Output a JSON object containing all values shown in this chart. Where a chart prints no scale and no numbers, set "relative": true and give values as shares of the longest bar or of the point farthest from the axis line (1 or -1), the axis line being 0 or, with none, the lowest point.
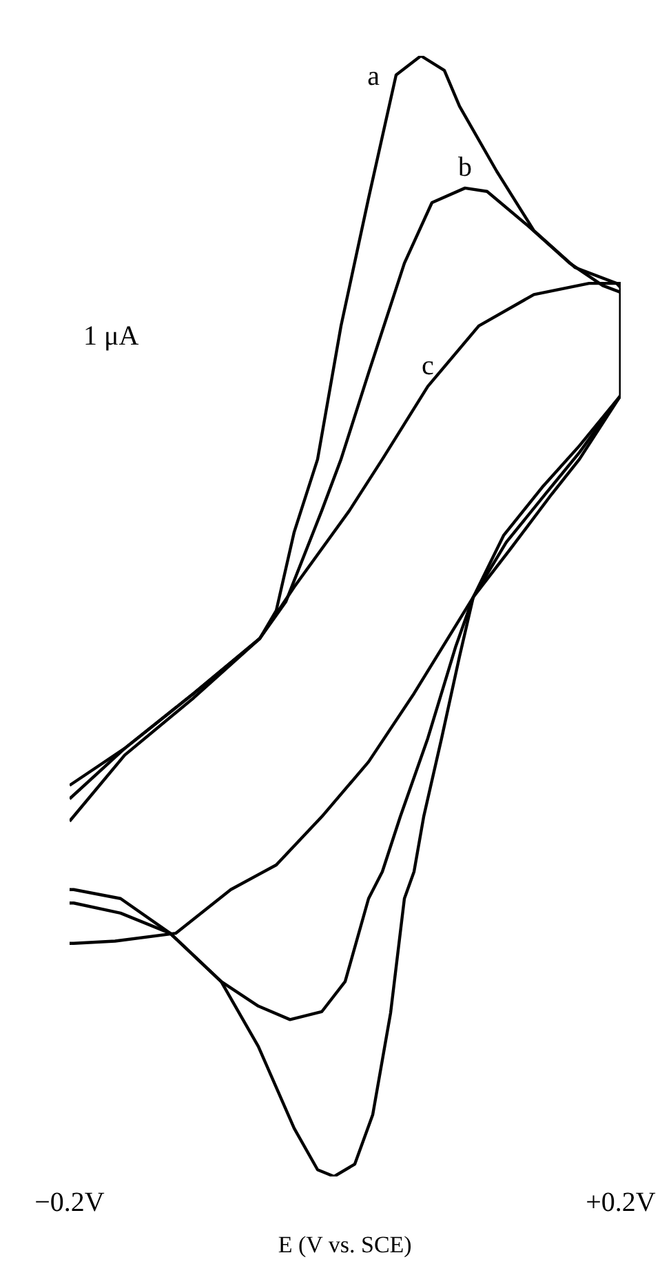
{
  "chart_data": {
    "type": "line",
    "relative": true,
    "xlabel": "E (V vs. SCE)",
    "xlim": [
      -0.2,
      0.2
    ],
    "xticks": [
      {
        "value": -0.2,
        "label": "−0.2V"
      },
      {
        "value": 0.2,
        "label": "+0.2V"
      }
    ],
    "tick_labels": "x",
    "grid": false,
    "line_style": "solid",
    "annotations": [
      "1 μA"
    ],
    "series": [
      {
        "name": "a",
        "color": "#000000",
        "x": [
          -0.2,
          -0.16,
          -0.11,
          -0.062,
          -0.05,
          -0.037,
          -0.02,
          -0.003,
          0.017,
          0.037,
          0.055,
          0.072,
          0.083,
          0.11,
          0.137,
          0.167,
          0.197,
          0.2,
          0.2,
          0.17,
          0.143,
          0.115,
          0.093,
          0.083,
          0.07,
          0.057,
          0.05,
          0.043,
          0.033,
          0.02,
          0.007,
          -0.008,
          -0.02,
          -0.037,
          -0.063,
          -0.09,
          -0.127,
          -0.163,
          -0.197,
          -0.2
        ],
        "values": [
          0.349,
          0.382,
          0.431,
          0.48,
          0.505,
          0.575,
          0.64,
          0.759,
          0.873,
          0.983,
          1.0,
          0.987,
          0.955,
          0.897,
          0.844,
          0.811,
          0.797,
          0.793,
          0.697,
          0.652,
          0.615,
          0.572,
          0.517,
          0.464,
          0.391,
          0.321,
          0.272,
          0.248,
          0.146,
          0.055,
          0.011,
          0,
          0.006,
          0.043,
          0.116,
          0.174,
          0.217,
          0.248,
          0.256,
          0.256
        ]
      },
      {
        "name": "b",
        "color": "#000000",
        "x": [
          -0.2,
          -0.16,
          -0.11,
          -0.062,
          -0.043,
          -0.017,
          -0.003,
          0.017,
          0.043,
          0.063,
          0.087,
          0.103,
          0.133,
          0.163,
          0.187,
          0.2,
          0.2,
          0.17,
          0.146,
          0.117,
          0.093,
          0.08,
          0.06,
          0.04,
          0.027,
          0.017,
          0,
          -0.017,
          -0.04,
          -0.063,
          -0.09,
          -0.127,
          -0.163,
          -0.197,
          -0.2
        ],
        "values": [
          0.337,
          0.382,
          0.431,
          0.48,
          0.513,
          0.594,
          0.64,
          0.717,
          0.815,
          0.869,
          0.882,
          0.879,
          0.848,
          0.815,
          0.795,
          0.789,
          0.697,
          0.646,
          0.61,
          0.566,
          0.517,
          0.472,
          0.391,
          0.321,
          0.272,
          0.248,
          0.174,
          0.147,
          0.14,
          0.152,
          0.174,
          0.217,
          0.235,
          0.244,
          0.244
        ]
      },
      {
        "name": "c",
        "color": "#000000",
        "x": [
          -0.2,
          -0.16,
          -0.11,
          -0.062,
          -0.037,
          0.003,
          0.027,
          0.06,
          0.097,
          0.137,
          0.177,
          0.2,
          0.2,
          0.17,
          0.15,
          0.12,
          0.093,
          0.05,
          0.017,
          -0.017,
          -0.05,
          -0.083,
          -0.123,
          -0.167,
          -0.197,
          -0.2
        ],
        "values": [
          0.317,
          0.376,
          0.427,
          0.48,
          0.526,
          0.594,
          0.64,
          0.705,
          0.759,
          0.787,
          0.797,
          0.797,
          0.697,
          0.64,
          0.609,
          0.56,
          0.517,
          0.431,
          0.37,
          0.321,
          0.278,
          0.256,
          0.217,
          0.21,
          0.208,
          0.208
        ]
      }
    ]
  }
}
